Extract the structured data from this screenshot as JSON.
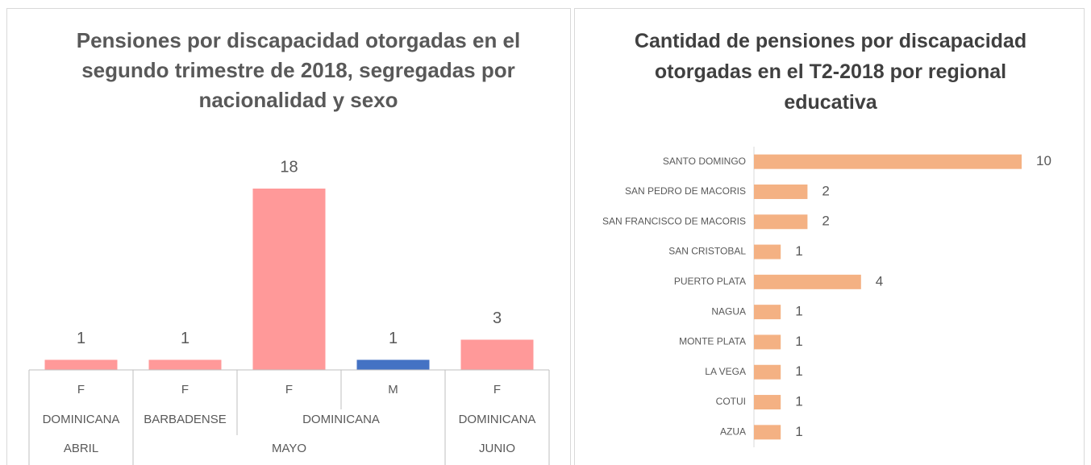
{
  "chart_data": [
    {
      "type": "bar",
      "title": "Pensiones por discapacidad otorgadas en el segundo trimestre de 2018, segregadas por nacionalidad y sexo",
      "categories": [
        "F",
        "F",
        "F",
        "M",
        "F"
      ],
      "nationality": [
        "DOMINICANA",
        "BARBADENSE",
        "DOMINICANA",
        null,
        "DOMINICANA"
      ],
      "month": [
        "ABRIL",
        "MAYO",
        null,
        null,
        "JUNIO"
      ],
      "values": [
        1,
        1,
        18,
        1,
        3
      ],
      "colors": [
        "#ff9999",
        "#ff9999",
        "#ff9999",
        "#4472c4",
        "#ff9999"
      ]
    },
    {
      "type": "hbar",
      "title": "Cantidad de pensiones por discapacidad otorgadas en el T2-2018 por regional educativa",
      "categories": [
        "SANTO DOMINGO",
        "SAN PEDRO DE MACORIS",
        "SAN FRANCISCO DE MACORIS",
        "SAN CRISTOBAL",
        "PUERTO PLATA",
        "NAGUA",
        "MONTE PLATA",
        "LA VEGA",
        "COTUI",
        "AZUA"
      ],
      "values": [
        10,
        2,
        2,
        1,
        4,
        1,
        1,
        1,
        1,
        1
      ],
      "color": "#f4b183"
    }
  ]
}
